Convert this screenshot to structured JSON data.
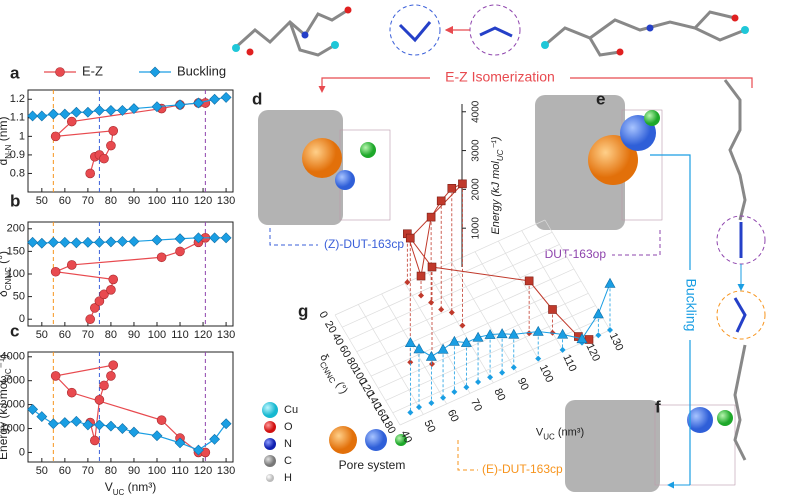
{
  "chart_data": [
    {
      "type": "line",
      "panel": "a",
      "xlim": [
        44,
        133
      ],
      "xticks": [
        50,
        60,
        70,
        80,
        90,
        100,
        110,
        120,
        130
      ],
      "ylim": [
        0.7,
        1.25
      ],
      "yticks": [
        0.8,
        0.9,
        1.0,
        1.1,
        1.2
      ],
      "ylabel": [
        "d",
        "N-N",
        " (nm)"
      ],
      "vlines": [
        {
          "value": 55,
          "color": "#f7941d"
        },
        {
          "value": 75,
          "color": "#3a5fd9"
        },
        {
          "value": 121,
          "color": "#8e44ad"
        }
      ],
      "series": [
        {
          "name": "E-Z",
          "color": "#e84a4f",
          "marker": "circle",
          "x": [
            71,
            73,
            75,
            77,
            80,
            81,
            56,
            63,
            102,
            110,
            118,
            121
          ],
          "values": [
            0.8,
            0.89,
            0.9,
            0.88,
            0.95,
            1.03,
            1.0,
            1.08,
            1.15,
            1.17,
            1.18,
            1.18
          ]
        },
        {
          "name": "Buckling",
          "color": "#1a9ee3",
          "marker": "diamond",
          "x": [
            46,
            50,
            55,
            60,
            65,
            70,
            75,
            80,
            85,
            90,
            100,
            110,
            118,
            125,
            130
          ],
          "values": [
            1.11,
            1.11,
            1.12,
            1.12,
            1.13,
            1.13,
            1.14,
            1.14,
            1.14,
            1.15,
            1.16,
            1.17,
            1.18,
            1.2,
            1.21
          ]
        }
      ]
    },
    {
      "type": "line",
      "panel": "b",
      "xlim": [
        44,
        133
      ],
      "xticks": [
        50,
        60,
        70,
        80,
        90,
        100,
        110,
        120,
        130
      ],
      "ylim": [
        -15,
        215
      ],
      "yticks": [
        0,
        50,
        100,
        150,
        200
      ],
      "ylabel": [
        "δ",
        "CNNC",
        " (°)"
      ],
      "vlines": [
        {
          "value": 55,
          "color": "#f7941d"
        },
        {
          "value": 75,
          "color": "#3a5fd9"
        },
        {
          "value": 121,
          "color": "#8e44ad"
        }
      ],
      "series": [
        {
          "color": "#e84a4f",
          "marker": "circle",
          "x": [
            71,
            73,
            75,
            77,
            80,
            81,
            56,
            63,
            102,
            110,
            118,
            121
          ],
          "values": [
            0,
            25,
            40,
            55,
            65,
            88,
            105,
            120,
            137,
            150,
            170,
            180
          ]
        },
        {
          "color": "#1a9ee3",
          "marker": "diamond",
          "x": [
            46,
            50,
            55,
            60,
            65,
            70,
            75,
            80,
            85,
            90,
            100,
            110,
            118,
            125,
            130
          ],
          "values": [
            170,
            168,
            170,
            170,
            169,
            170,
            170,
            171,
            172,
            172,
            175,
            178,
            180,
            180,
            180
          ]
        }
      ]
    },
    {
      "type": "line",
      "panel": "c",
      "xlim": [
        44,
        133
      ],
      "xticks": [
        50,
        60,
        70,
        80,
        90,
        100,
        110,
        120,
        130
      ],
      "ylim": [
        -400,
        4200
      ],
      "yticks": [
        0,
        1000,
        2000,
        3000,
        4000
      ],
      "ylabel": [
        "Energy (kJ mol",
        "UC",
        "⁻¹)"
      ],
      "xlabel": [
        "V",
        "UC",
        " (nm³)"
      ],
      "vlines": [
        {
          "value": 55,
          "color": "#f7941d"
        },
        {
          "value": 75,
          "color": "#3a5fd9"
        },
        {
          "value": 121,
          "color": "#8e44ad"
        }
      ],
      "series": [
        {
          "color": "#e84a4f",
          "marker": "circle",
          "x": [
            71,
            73,
            75,
            77,
            80,
            81,
            56,
            63,
            102,
            110,
            118,
            121
          ],
          "values": [
            1250,
            500,
            2200,
            2800,
            3200,
            3650,
            3200,
            2500,
            1350,
            600,
            0,
            0
          ]
        },
        {
          "color": "#1a9ee3",
          "marker": "diamond",
          "x": [
            46,
            50,
            55,
            60,
            65,
            70,
            75,
            80,
            85,
            90,
            100,
            110,
            118,
            125,
            130
          ],
          "values": [
            1800,
            1500,
            1200,
            1250,
            1300,
            1150,
            1150,
            1100,
            1000,
            850,
            700,
            400,
            100,
            550,
            1200
          ]
        }
      ]
    },
    {
      "type": "scatter3d",
      "panel": "g",
      "xlim": [
        40,
        130
      ],
      "xticks": [
        40,
        50,
        60,
        70,
        80,
        90,
        100,
        110,
        120,
        130
      ],
      "ylim": [
        0,
        180
      ],
      "yticks": [
        0,
        20,
        40,
        60,
        80,
        100,
        120,
        140,
        160,
        180
      ],
      "zlim": [
        0,
        4200
      ],
      "zticks": [
        1000,
        2000,
        3000,
        4000
      ],
      "xlabel": [
        "V",
        "UC",
        " (nm³)"
      ],
      "ylabel": [
        "δ",
        "CNNC",
        " (°)"
      ],
      "zlabel": [
        "Energy (kJ mol",
        "UC",
        "⁻¹)"
      ],
      "series": [
        {
          "color": "#c0392b",
          "marker": "cube",
          "x": [
            71,
            73,
            75,
            77,
            80,
            81,
            56,
            63,
            102,
            110,
            118,
            121
          ],
          "y": [
            0,
            25,
            40,
            55,
            65,
            88,
            105,
            120,
            137,
            150,
            170,
            180
          ],
          "z": [
            1250,
            500,
            2200,
            2800,
            3200,
            3650,
            3200,
            2500,
            1350,
            600,
            0,
            0
          ]
        },
        {
          "color": "#1a9ee3",
          "marker": "cone",
          "x": [
            46,
            50,
            55,
            60,
            65,
            70,
            75,
            80,
            85,
            90,
            100,
            110,
            118,
            125,
            130
          ],
          "y": [
            170,
            168,
            170,
            170,
            169,
            170,
            170,
            171,
            172,
            172,
            175,
            178,
            180,
            180,
            180
          ],
          "z": [
            1800,
            1500,
            1200,
            1250,
            1300,
            1150,
            1150,
            1100,
            1000,
            850,
            700,
            400,
            100,
            550,
            1200
          ]
        }
      ]
    }
  ],
  "figure": {
    "panel_labels": [
      "a",
      "b",
      "c",
      "d",
      "e",
      "f",
      "g"
    ],
    "isomerization": "E-Z Isomerization",
    "buckling": "Buckling",
    "z_cp": "(Z)-DUT-163cp",
    "op": "DUT-163op",
    "e_cp": "(E)-DUT-163cp",
    "atoms": [
      "Cu",
      "O",
      "N",
      "C",
      "H"
    ],
    "pore": "Pore system"
  }
}
